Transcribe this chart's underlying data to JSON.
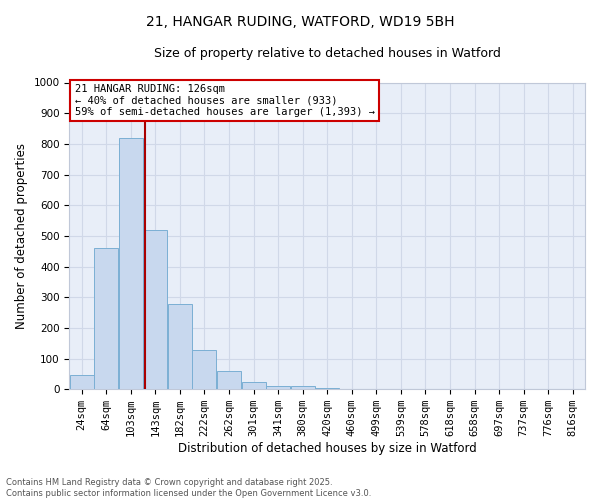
{
  "title_line1": "21, HANGAR RUDING, WATFORD, WD19 5BH",
  "title_line2": "Size of property relative to detached houses in Watford",
  "xlabel": "Distribution of detached houses by size in Watford",
  "ylabel": "Number of detached properties",
  "bar_values": [
    45,
    460,
    820,
    520,
    278,
    128,
    58,
    22,
    10,
    12,
    5,
    0,
    0,
    0,
    0,
    0,
    0,
    0,
    0,
    0,
    0
  ],
  "bin_edges": [
    24,
    64,
    103,
    143,
    182,
    222,
    262,
    301,
    341,
    380,
    420,
    460,
    499,
    539,
    578,
    618,
    658,
    697,
    737,
    776,
    816
  ],
  "x_labels": [
    "24sqm",
    "64sqm",
    "103sqm",
    "143sqm",
    "182sqm",
    "222sqm",
    "262sqm",
    "301sqm",
    "341sqm",
    "380sqm",
    "420sqm",
    "460sqm",
    "499sqm",
    "539sqm",
    "578sqm",
    "618sqm",
    "658sqm",
    "697sqm",
    "737sqm",
    "776sqm",
    "816sqm"
  ],
  "bar_color": "#c8d8ee",
  "bar_edge_color": "#7bafd4",
  "vline_x_index": 2.57,
  "vline_color": "#aa0000",
  "annotation_text": "21 HANGAR RUDING: 126sqm\n← 40% of detached houses are smaller (933)\n59% of semi-detached houses are larger (1,393) →",
  "annotation_box_color": "#cc0000",
  "ylim": [
    0,
    1000
  ],
  "yticks": [
    0,
    100,
    200,
    300,
    400,
    500,
    600,
    700,
    800,
    900,
    1000
  ],
  "footer_line1": "Contains HM Land Registry data © Crown copyright and database right 2025.",
  "footer_line2": "Contains public sector information licensed under the Open Government Licence v3.0.",
  "grid_color": "#d0d8e8",
  "bg_color": "#e8eef8",
  "title1_fontsize": 10,
  "title2_fontsize": 9,
  "xlabel_fontsize": 8.5,
  "ylabel_fontsize": 8.5,
  "tick_fontsize": 7.5,
  "annot_fontsize": 7.5,
  "footer_fontsize": 6
}
